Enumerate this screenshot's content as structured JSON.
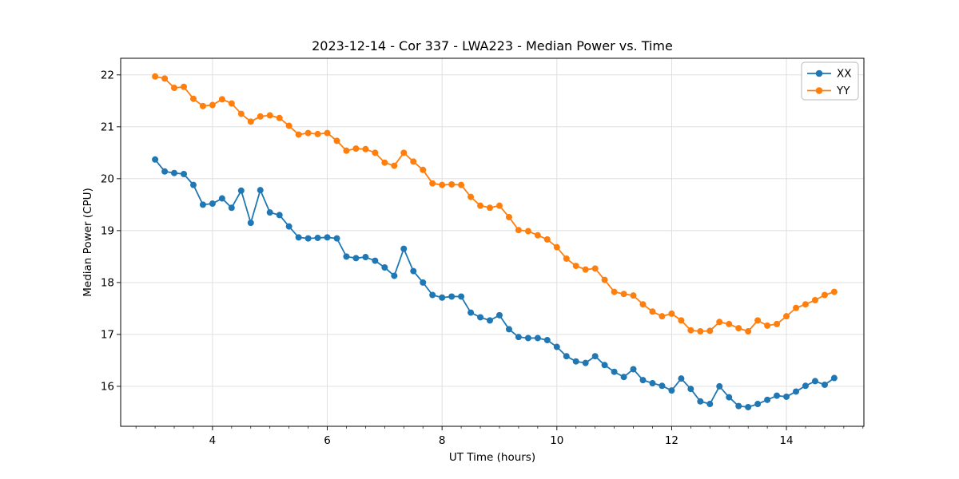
{
  "chart_data": {
    "type": "line",
    "title": "2023-12-14 - Cor 337 - LWA223 - Median Power vs. Time",
    "xlabel": "UT Time (hours)",
    "ylabel": "Median Power (CPU)",
    "xlim": [
      2.4,
      15.35
    ],
    "ylim": [
      15.23,
      22.32
    ],
    "xticks": [
      4,
      6,
      8,
      10,
      12,
      14
    ],
    "yticks": [
      16,
      17,
      18,
      19,
      20,
      21,
      22
    ],
    "x_minor_tick_step": 0.3333,
    "grid": true,
    "grid_color": "#dcdcdc",
    "legend_position": "upper right",
    "marker": "circle",
    "x": [
      3.0,
      3.167,
      3.333,
      3.5,
      3.667,
      3.833,
      4.0,
      4.167,
      4.333,
      4.5,
      4.667,
      4.833,
      5.0,
      5.167,
      5.333,
      5.5,
      5.667,
      5.833,
      6.0,
      6.167,
      6.333,
      6.5,
      6.667,
      6.833,
      7.0,
      7.167,
      7.333,
      7.5,
      7.667,
      7.833,
      8.0,
      8.167,
      8.333,
      8.5,
      8.667,
      8.833,
      9.0,
      9.167,
      9.333,
      9.5,
      9.667,
      9.833,
      10.0,
      10.167,
      10.333,
      10.5,
      10.667,
      10.833,
      11.0,
      11.167,
      11.333,
      11.5,
      11.667,
      11.833,
      12.0,
      12.167,
      12.333,
      12.5,
      12.667,
      12.833,
      13.0,
      13.167,
      13.333,
      13.5,
      13.667,
      13.833,
      14.0,
      14.167,
      14.333,
      14.5,
      14.667,
      14.833
    ],
    "series": [
      {
        "name": "XX",
        "color": "#1f77b4",
        "values": [
          20.37,
          20.14,
          20.11,
          20.09,
          19.88,
          19.5,
          19.52,
          19.62,
          19.44,
          19.77,
          19.15,
          19.78,
          19.35,
          19.3,
          19.08,
          18.87,
          18.85,
          18.86,
          18.87,
          18.85,
          18.5,
          18.47,
          18.49,
          18.42,
          18.29,
          18.13,
          18.65,
          18.22,
          18.0,
          17.76,
          17.71,
          17.73,
          17.73,
          17.42,
          17.33,
          17.27,
          17.37,
          17.1,
          16.95,
          16.93,
          16.93,
          16.89,
          16.76,
          16.58,
          16.48,
          16.45,
          16.58,
          16.41,
          16.28,
          16.18,
          16.33,
          16.12,
          16.06,
          16.01,
          15.92,
          16.15,
          15.95,
          15.71,
          15.66,
          16.0,
          15.79,
          15.62,
          15.6,
          15.66,
          15.74,
          15.82,
          15.8,
          15.9,
          16.01,
          16.1,
          16.03,
          16.16
        ]
      },
      {
        "name": "YY",
        "color": "#ff7f0e",
        "values": [
          21.97,
          21.93,
          21.75,
          21.77,
          21.54,
          21.4,
          21.42,
          21.53,
          21.45,
          21.25,
          21.1,
          21.2,
          21.22,
          21.17,
          21.02,
          20.85,
          20.88,
          20.86,
          20.88,
          20.73,
          20.54,
          20.58,
          20.57,
          20.5,
          20.31,
          20.25,
          20.5,
          20.33,
          20.17,
          19.91,
          19.88,
          19.89,
          19.88,
          19.65,
          19.48,
          19.44,
          19.48,
          19.26,
          19.01,
          18.99,
          18.91,
          18.83,
          18.68,
          18.46,
          18.32,
          18.25,
          18.27,
          18.05,
          17.82,
          17.78,
          17.75,
          17.58,
          17.44,
          17.35,
          17.4,
          17.27,
          17.08,
          17.06,
          17.07,
          17.24,
          17.2,
          17.12,
          17.06,
          17.27,
          17.17,
          17.2,
          17.35,
          17.51,
          17.58,
          17.66,
          17.76,
          17.82
        ]
      }
    ]
  }
}
